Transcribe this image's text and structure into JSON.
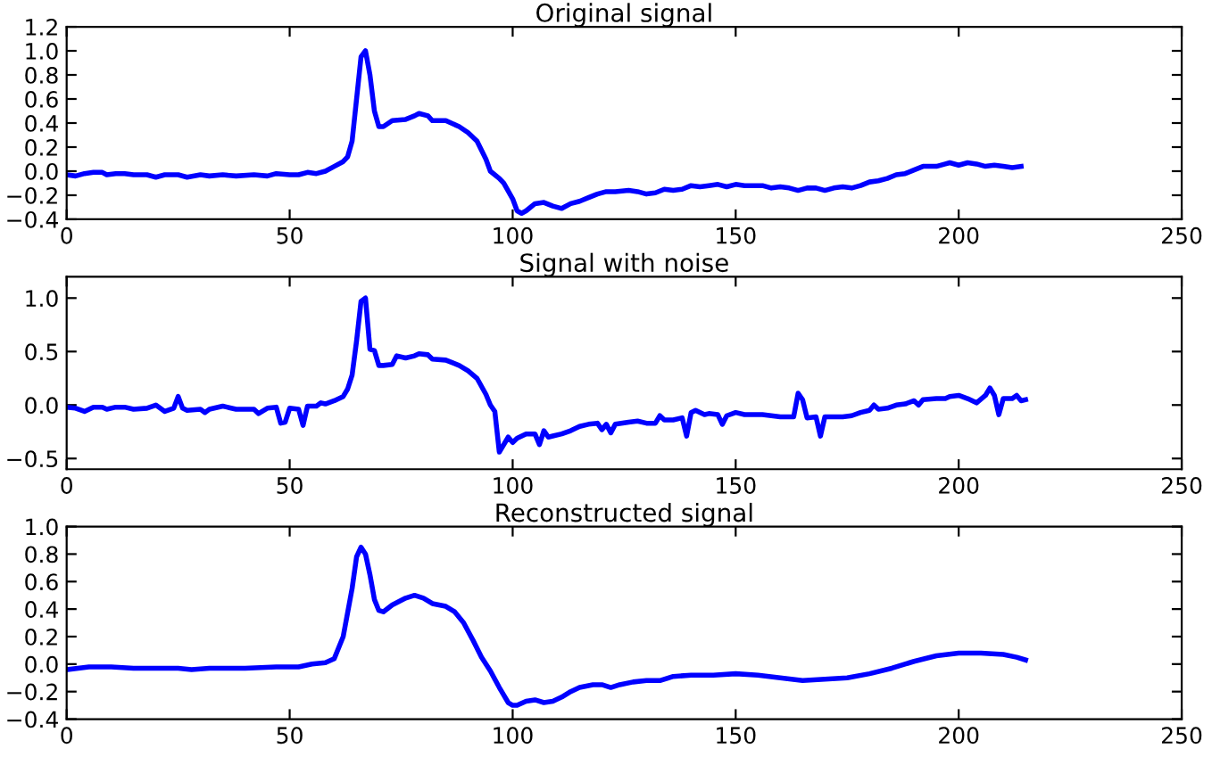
{
  "chart_data": [
    {
      "type": "line",
      "title": "Original signal",
      "xlim": [
        0,
        250
      ],
      "xticks": [
        0,
        50,
        100,
        150,
        200,
        250
      ],
      "ylim": [
        -0.4,
        1.2
      ],
      "yticks": [
        {
          "value": -0.4,
          "label": "−0.4"
        },
        {
          "value": -0.2,
          "label": "−0.2"
        },
        {
          "value": 0,
          "label": "0.0"
        },
        {
          "value": 0.2,
          "label": "0.2"
        },
        {
          "value": 0.4,
          "label": "0.4"
        },
        {
          "value": 0.6,
          "label": "0.6"
        },
        {
          "value": 0.8,
          "label": "0.8"
        },
        {
          "value": 1.0,
          "label": "1.0"
        },
        {
          "value": 1.2,
          "label": "1.2"
        }
      ],
      "grid": false,
      "marker": "none",
      "line_style": "solid",
      "series": [
        {
          "color": "#0000ff",
          "x": [
            0,
            2,
            4,
            6,
            8,
            9,
            11,
            13,
            15,
            18,
            20,
            22,
            25,
            27,
            30,
            32,
            35,
            38,
            42,
            45,
            47,
            50,
            52,
            54,
            56,
            58,
            60,
            62,
            63,
            64,
            65,
            66,
            67,
            68,
            69,
            70,
            71,
            73,
            76,
            78,
            79,
            81,
            82,
            85,
            88,
            90,
            92,
            94,
            95,
            97,
            98,
            100,
            101,
            102,
            103,
            105,
            107,
            109,
            111,
            113,
            115,
            117,
            119,
            121,
            123,
            126,
            128,
            130,
            132,
            134,
            136,
            138,
            140,
            142,
            144,
            146,
            148,
            150,
            152,
            154,
            156,
            158,
            160,
            162,
            164,
            166,
            168,
            170,
            172,
            174,
            176,
            178,
            180,
            182,
            184,
            186,
            188,
            190,
            192,
            195,
            197,
            198,
            200,
            202,
            204,
            206,
            208,
            210,
            212,
            214
          ],
          "values": [
            -0.03,
            -0.04,
            -0.02,
            -0.01,
            -0.01,
            -0.03,
            -0.02,
            -0.02,
            -0.03,
            -0.03,
            -0.05,
            -0.03,
            -0.03,
            -0.05,
            -0.03,
            -0.04,
            -0.03,
            -0.04,
            -0.03,
            -0.04,
            -0.02,
            -0.03,
            -0.03,
            -0.01,
            -0.02,
            0.0,
            0.04,
            0.08,
            0.12,
            0.25,
            0.6,
            0.95,
            1.0,
            0.8,
            0.5,
            0.37,
            0.37,
            0.42,
            0.43,
            0.46,
            0.48,
            0.46,
            0.42,
            0.42,
            0.37,
            0.32,
            0.25,
            0.1,
            0.0,
            -0.06,
            -0.1,
            -0.23,
            -0.33,
            -0.35,
            -0.33,
            -0.27,
            -0.26,
            -0.29,
            -0.31,
            -0.27,
            -0.25,
            -0.22,
            -0.19,
            -0.17,
            -0.17,
            -0.16,
            -0.17,
            -0.19,
            -0.18,
            -0.15,
            -0.16,
            -0.15,
            -0.12,
            -0.13,
            -0.12,
            -0.11,
            -0.13,
            -0.11,
            -0.12,
            -0.12,
            -0.12,
            -0.14,
            -0.13,
            -0.14,
            -0.16,
            -0.14,
            -0.14,
            -0.16,
            -0.14,
            -0.13,
            -0.14,
            -0.12,
            -0.09,
            -0.08,
            -0.06,
            -0.03,
            -0.02,
            0.01,
            0.04,
            0.04,
            0.06,
            0.07,
            0.05,
            0.07,
            0.06,
            0.04,
            0.05,
            0.04,
            0.03,
            0.04
          ]
        }
      ]
    },
    {
      "type": "line",
      "title": "Signal with noise",
      "xlim": [
        0,
        250
      ],
      "xticks": [
        0,
        50,
        100,
        150,
        200,
        250
      ],
      "ylim": [
        -0.6,
        1.2
      ],
      "yticks": [
        {
          "value": -0.5,
          "label": "−0.5"
        },
        {
          "value": 0,
          "label": "0.0"
        },
        {
          "value": 0.5,
          "label": "0.5"
        },
        {
          "value": 1.0,
          "label": "1.0"
        }
      ],
      "grid": false,
      "marker": "none",
      "line_style": "solid",
      "series": [
        {
          "color": "#0000ff",
          "x": [
            0,
            2,
            4,
            6,
            8,
            9,
            11,
            13,
            15,
            18,
            20,
            22,
            24,
            25,
            26,
            27,
            30,
            31,
            32,
            35,
            38,
            42,
            43,
            45,
            47,
            48,
            49,
            50,
            52,
            53,
            54,
            56,
            57,
            58,
            60,
            62,
            63,
            64,
            65,
            66,
            67,
            68,
            69,
            70,
            71,
            73,
            74,
            76,
            78,
            79,
            81,
            82,
            85,
            88,
            90,
            92,
            94,
            95,
            96,
            97,
            99,
            100,
            101,
            103,
            105,
            106,
            107,
            108,
            109,
            111,
            113,
            115,
            117,
            119,
            120,
            121,
            122,
            123,
            126,
            128,
            130,
            132,
            133,
            134,
            136,
            138,
            139,
            140,
            141,
            143,
            144,
            146,
            147,
            148,
            150,
            152,
            154,
            156,
            158,
            160,
            162,
            163,
            164,
            165,
            166,
            168,
            169,
            170,
            172,
            174,
            176,
            178,
            180,
            181,
            182,
            184,
            186,
            188,
            190,
            191,
            192,
            195,
            197,
            198,
            200,
            202,
            204,
            206,
            207,
            208,
            209,
            210,
            212,
            213,
            214,
            215
          ],
          "values": [
            -0.02,
            -0.03,
            -0.06,
            -0.02,
            -0.02,
            -0.04,
            -0.02,
            -0.02,
            -0.04,
            -0.03,
            0.0,
            -0.06,
            -0.03,
            0.08,
            -0.03,
            -0.05,
            -0.04,
            -0.07,
            -0.04,
            -0.01,
            -0.04,
            -0.04,
            -0.08,
            -0.03,
            -0.02,
            -0.17,
            -0.16,
            -0.03,
            -0.04,
            -0.19,
            -0.01,
            -0.01,
            0.02,
            0.01,
            0.04,
            0.08,
            0.15,
            0.28,
            0.6,
            0.97,
            1.0,
            0.52,
            0.51,
            0.37,
            0.37,
            0.38,
            0.46,
            0.44,
            0.46,
            0.48,
            0.47,
            0.43,
            0.42,
            0.37,
            0.32,
            0.25,
            0.1,
            0.0,
            -0.06,
            -0.44,
            -0.3,
            -0.35,
            -0.31,
            -0.27,
            -0.27,
            -0.37,
            -0.24,
            -0.3,
            -0.29,
            -0.27,
            -0.24,
            -0.2,
            -0.18,
            -0.17,
            -0.23,
            -0.18,
            -0.26,
            -0.18,
            -0.16,
            -0.15,
            -0.17,
            -0.17,
            -0.1,
            -0.14,
            -0.14,
            -0.12,
            -0.29,
            -0.07,
            -0.05,
            -0.09,
            -0.08,
            -0.09,
            -0.18,
            -0.1,
            -0.07,
            -0.09,
            -0.09,
            -0.09,
            -0.1,
            -0.11,
            -0.11,
            -0.11,
            0.11,
            0.05,
            -0.12,
            -0.11,
            -0.29,
            -0.11,
            -0.11,
            -0.11,
            -0.1,
            -0.07,
            -0.05,
            0.0,
            -0.04,
            -0.03,
            0.0,
            0.01,
            0.04,
            0.0,
            0.05,
            0.06,
            0.06,
            0.08,
            0.09,
            0.06,
            0.02,
            0.09,
            0.16,
            0.09,
            -0.09,
            0.06,
            0.06,
            0.09,
            0.04,
            0.05
          ]
        }
      ]
    },
    {
      "type": "line",
      "title": "Reconstructed signal",
      "xlim": [
        0,
        250
      ],
      "xticks": [
        0,
        50,
        100,
        150,
        200,
        250
      ],
      "ylim": [
        -0.4,
        1.0
      ],
      "yticks": [
        {
          "value": -0.4,
          "label": "−0.4"
        },
        {
          "value": -0.2,
          "label": "−0.2"
        },
        {
          "value": 0,
          "label": "0.0"
        },
        {
          "value": 0.2,
          "label": "0.2"
        },
        {
          "value": 0.4,
          "label": "0.4"
        },
        {
          "value": 0.6,
          "label": "0.6"
        },
        {
          "value": 0.8,
          "label": "0.8"
        },
        {
          "value": 1.0,
          "label": "1.0"
        }
      ],
      "grid": false,
      "marker": "none",
      "line_style": "solid",
      "series": [
        {
          "color": "#0000ff",
          "x": [
            0,
            5,
            10,
            15,
            20,
            25,
            28,
            32,
            40,
            47,
            52,
            55,
            58,
            60,
            62,
            64,
            65,
            66,
            67,
            68,
            69,
            70,
            71,
            73,
            76,
            78,
            80,
            82,
            85,
            87,
            89,
            91,
            93,
            95,
            97,
            99,
            100,
            101,
            103,
            105,
            107,
            109,
            111,
            113,
            115,
            118,
            120,
            122,
            124,
            127,
            130,
            133,
            136,
            140,
            145,
            150,
            155,
            160,
            165,
            170,
            175,
            180,
            185,
            190,
            195,
            200,
            205,
            210,
            213,
            215
          ],
          "values": [
            -0.04,
            -0.02,
            -0.02,
            -0.03,
            -0.03,
            -0.03,
            -0.04,
            -0.03,
            -0.03,
            -0.02,
            -0.02,
            0.0,
            0.01,
            0.04,
            0.2,
            0.55,
            0.78,
            0.85,
            0.8,
            0.65,
            0.47,
            0.39,
            0.38,
            0.43,
            0.48,
            0.5,
            0.48,
            0.44,
            0.42,
            0.38,
            0.3,
            0.18,
            0.05,
            -0.05,
            -0.17,
            -0.28,
            -0.3,
            -0.3,
            -0.27,
            -0.26,
            -0.28,
            -0.27,
            -0.24,
            -0.2,
            -0.17,
            -0.15,
            -0.15,
            -0.17,
            -0.15,
            -0.13,
            -0.12,
            -0.12,
            -0.09,
            -0.08,
            -0.08,
            -0.07,
            -0.08,
            -0.1,
            -0.12,
            -0.11,
            -0.1,
            -0.07,
            -0.03,
            0.02,
            0.06,
            0.08,
            0.08,
            0.07,
            0.05,
            0.03
          ]
        }
      ]
    }
  ]
}
